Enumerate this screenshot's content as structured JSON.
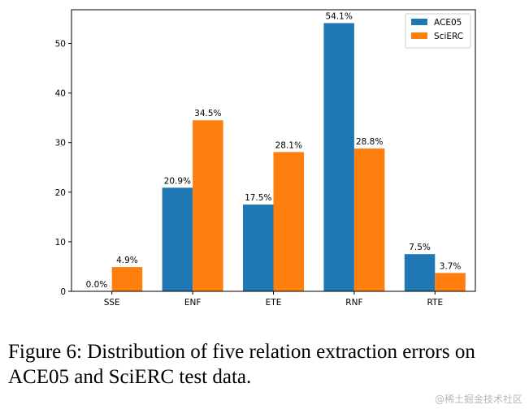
{
  "chart_data": {
    "type": "bar",
    "categories": [
      "SSE",
      "ENF",
      "ETE",
      "RNF",
      "RTE"
    ],
    "series": [
      {
        "name": "ACE05",
        "color": "#1f77b4",
        "values": [
          0.0,
          20.9,
          17.5,
          54.1,
          7.5
        ],
        "labels": [
          "0.0%",
          "20.9%",
          "17.5%",
          "54.1%",
          "7.5%"
        ]
      },
      {
        "name": "SciERC",
        "color": "#ff7f0e",
        "values": [
          4.9,
          34.5,
          28.1,
          28.8,
          3.7
        ],
        "labels": [
          "4.9%",
          "34.5%",
          "28.1%",
          "28.8%",
          "3.7%"
        ]
      }
    ],
    "yticks": [
      0,
      10,
      20,
      30,
      40,
      50
    ],
    "ylim": [
      0,
      56.8
    ],
    "title": "",
    "xlabel": "",
    "ylabel": "",
    "legend": "top-right"
  },
  "caption": "Figure 6: Distribution of five relation extraction errors on ACE05 and SciERC test data.",
  "watermark": "@稀土掘金技术社区"
}
